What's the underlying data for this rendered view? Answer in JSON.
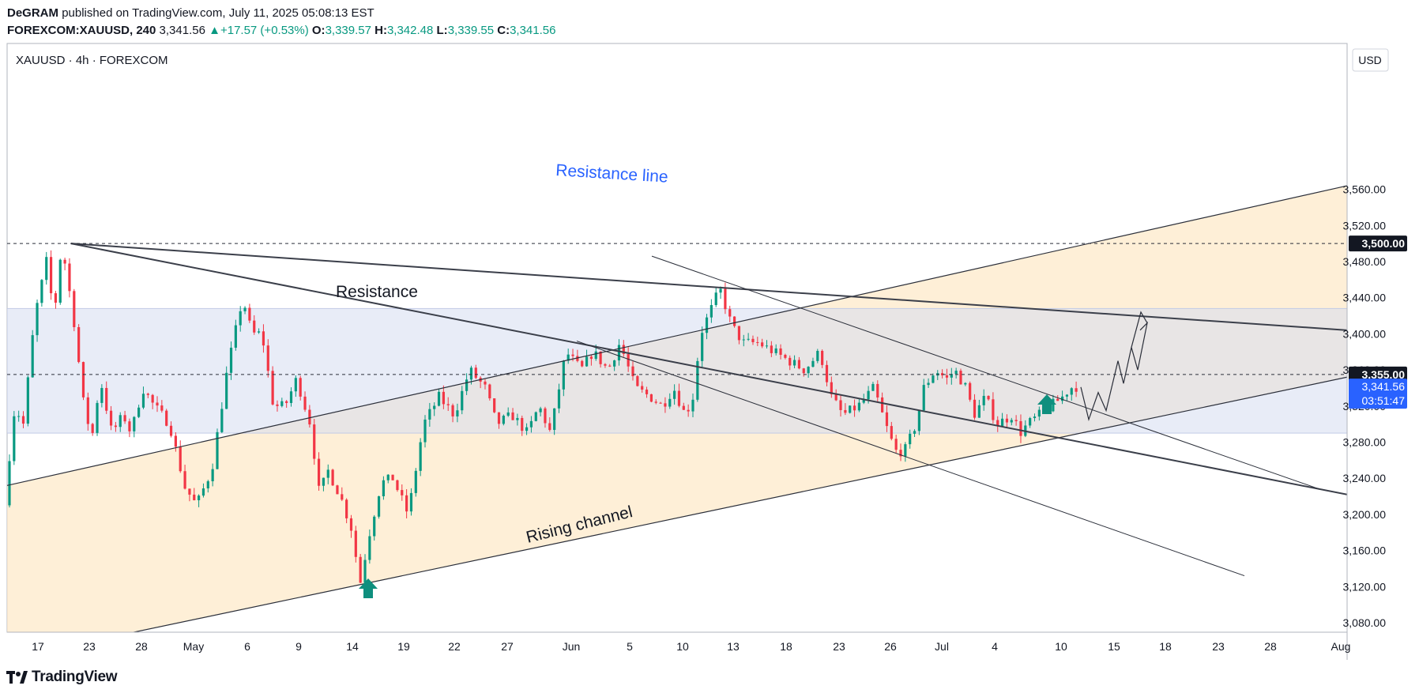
{
  "header": {
    "author": "DeGRAM",
    "published": "published on TradingView.com, July 11, 2025 05:08:13 EST",
    "symbol": "FOREXCOM:XAUUSD, 240",
    "last": "3,341.56",
    "arrow": "▲",
    "change": "+17.57 (+0.53%)",
    "o_label": "O:",
    "o": "3,339.57",
    "h_label": "H:",
    "h": "3,342.48",
    "l_label": "L:",
    "l": "3,339.55",
    "c_label": "C:",
    "c": "3,341.56"
  },
  "chart_header": "XAUUSD · 4h · FOREXCOM",
  "currency": "USD",
  "footer": {
    "brand": "TradingView"
  },
  "colors": {
    "up": "#089981",
    "down": "#f23645",
    "channel_fill": "#fde9c8",
    "resistance_zone": "#d6dcf0",
    "resistance_label": "#2962ff",
    "price_badge": "#2962ff"
  },
  "chart_data": {
    "type": "candlestick",
    "symbol": "XAUUSD",
    "interval": "4h",
    "ylim": [
      3060,
      3540
    ],
    "y_ticks": [
      3080,
      3120,
      3160,
      3200,
      3240,
      3280,
      3320,
      3360,
      3400,
      3440,
      3480,
      3520,
      3560
    ],
    "y_tick_labels": [
      "3,080.00",
      "3,120.00",
      "3,160.00",
      "3,200.00",
      "3,240.00",
      "3,280.00",
      "3,320.00",
      "3,360.00",
      "3,400.00",
      "3,440.00",
      "3,480.00",
      "3,520.00",
      "3,560.00"
    ],
    "x_tick_labels": [
      "17",
      "23",
      "28",
      "May",
      "6",
      "9",
      "14",
      "19",
      "22",
      "27",
      "Jun",
      "5",
      "10",
      "13",
      "18",
      "23",
      "26",
      "Jul",
      "4",
      "10",
      "15",
      "18",
      "23",
      "28",
      "Aug"
    ],
    "price_levels": [
      {
        "value": 3500,
        "label": "3,500.00"
      },
      {
        "value": 3355,
        "label": "3,355.00"
      }
    ],
    "current_price": {
      "value": 3341.56,
      "label": "3,341.56",
      "countdown": "03:51:47"
    },
    "resistance_zone": [
      3290,
      3428
    ],
    "key_points": [
      {
        "date": "Apr 17",
        "price": 3210
      },
      {
        "date": "Apr 22",
        "price": 3500
      },
      {
        "date": "May 15",
        "price": 3121
      },
      {
        "date": "Jun 5",
        "price": 3403
      },
      {
        "date": "Jun 13",
        "price": 3452
      },
      {
        "date": "Jun 30",
        "price": 3248
      },
      {
        "date": "Jul 3",
        "price": 3365
      },
      {
        "date": "Jul 9",
        "price": 3282
      },
      {
        "date": "Jul 11",
        "price": 3341.56
      }
    ],
    "annotations": [
      {
        "text": "Resistance line"
      },
      {
        "text": "Resistance"
      },
      {
        "text": "Rising channel"
      }
    ]
  }
}
